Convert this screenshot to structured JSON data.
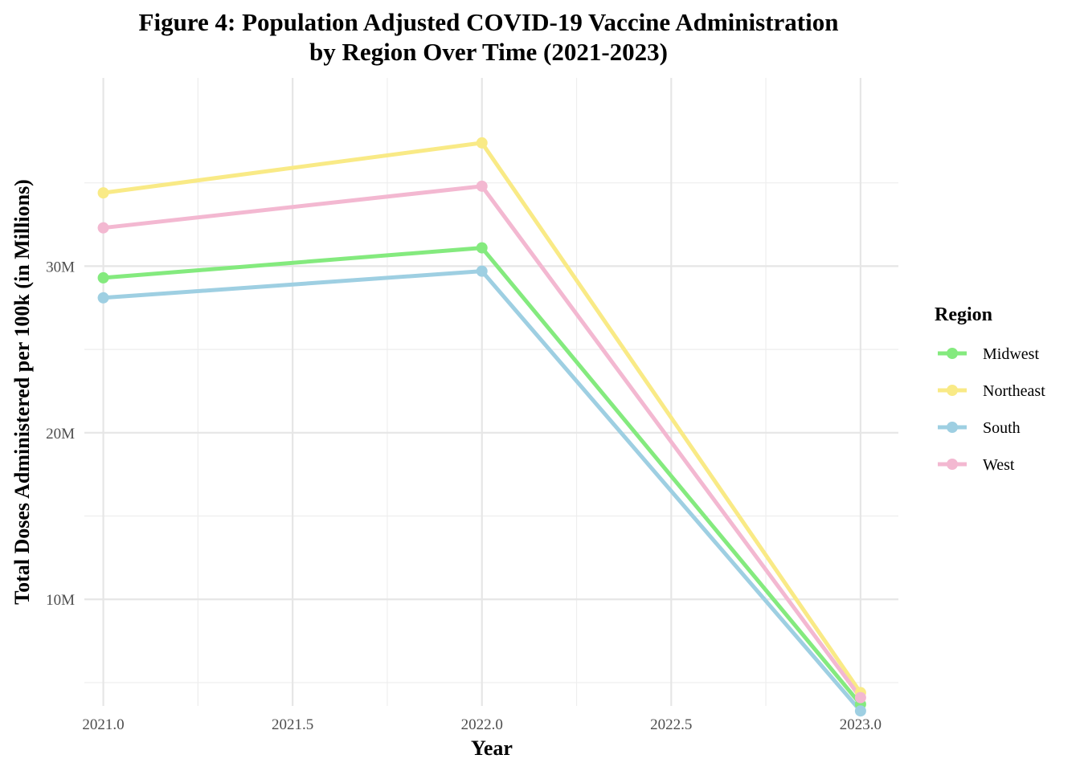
{
  "chart_data": {
    "type": "line",
    "title": "Figure 4: Population Adjusted COVID-19 Vaccine Administration by Region Over Time (2021-2023)",
    "title_lines": [
      "Figure 4: Population Adjusted COVID-19 Vaccine Administration",
      "by Region Over Time (2021-2023)"
    ],
    "xlabel": "Year",
    "ylabel": "Total Doses Administered per 100k (in Millions)",
    "x": [
      2021,
      2022,
      2023
    ],
    "xlim": [
      2020.95,
      2023.1
    ],
    "ylim": [
      3.6,
      41.3
    ],
    "x_ticks": [
      {
        "value": 2021.0,
        "label": "2021.0"
      },
      {
        "value": 2021.5,
        "label": "2021.5"
      },
      {
        "value": 2022.0,
        "label": "2022.0"
      },
      {
        "value": 2022.5,
        "label": "2022.5"
      },
      {
        "value": 2023.0,
        "label": "2023.0"
      }
    ],
    "y_ticks": [
      {
        "value": 10,
        "label": "10M"
      },
      {
        "value": 20,
        "label": "20M"
      },
      {
        "value": 30,
        "label": "30M"
      }
    ],
    "y_minor_ticks": [
      5,
      15,
      25,
      35
    ],
    "x_minor_ticks": [
      2021.25,
      2021.75,
      2022.25,
      2022.75
    ],
    "grid": true,
    "legend": {
      "title": "Region",
      "position": "right"
    },
    "series": [
      {
        "name": "Midwest",
        "color": "#84ea7e",
        "values": [
          29.3,
          31.1,
          3.7
        ]
      },
      {
        "name": "Northeast",
        "color": "#f9ea86",
        "values": [
          34.4,
          37.4,
          4.4
        ]
      },
      {
        "name": "South",
        "color": "#9ecfe2",
        "values": [
          28.1,
          29.7,
          3.3
        ]
      },
      {
        "name": "West",
        "color": "#f3b8d1",
        "values": [
          32.3,
          34.8,
          4.1
        ]
      }
    ]
  }
}
